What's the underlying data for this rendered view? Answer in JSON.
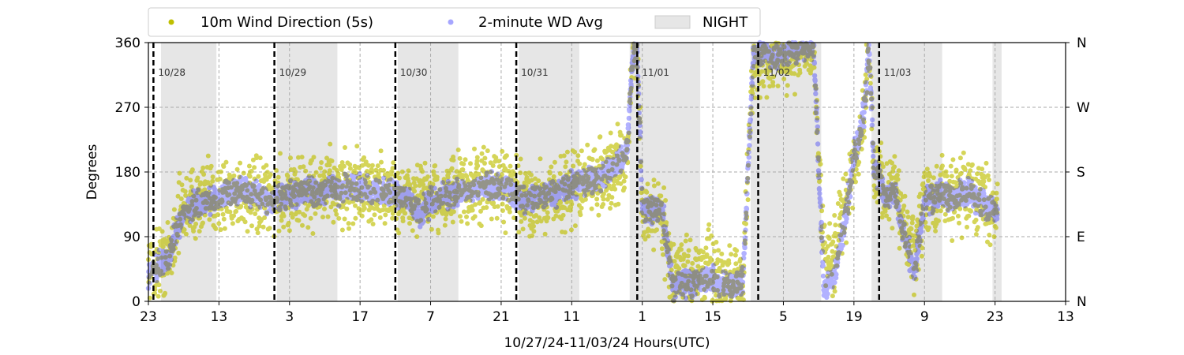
{
  "chart_data": {
    "type": "scatter",
    "title": "",
    "xlabel": "10/27/24-11/03/24  Hours(UTC)",
    "ylabel": "Degrees",
    "x_range_hours": [
      0,
      182
    ],
    "ylim": [
      0,
      360
    ],
    "x_tick_positions_hours": [
      0,
      14,
      28,
      42,
      56,
      70,
      84,
      98,
      112,
      126,
      140,
      154,
      168,
      182
    ],
    "x_tick_labels": [
      "23",
      "13",
      "3",
      "17",
      "7",
      "21",
      "11",
      "1",
      "15",
      "5",
      "19",
      "9",
      "23",
      "13"
    ],
    "y_ticks": [
      0,
      90,
      180,
      270,
      360
    ],
    "y_tick_labels": [
      "0",
      "90",
      "180",
      "270",
      "360"
    ],
    "right_axis_labels": [
      "N",
      "E",
      "S",
      "W",
      "N"
    ],
    "grid": true,
    "legend": {
      "placement": "top-left",
      "entries": [
        {
          "label": "10m Wind Direction (5s)",
          "color": "#bfbf00",
          "marker": "dot"
        },
        {
          "label": "2-minute WD Avg",
          "color": "#0000ff",
          "marker": "dot"
        },
        {
          "label": "NIGHT",
          "color": "#e6e6e6",
          "marker": "patch"
        }
      ]
    },
    "day_markers": [
      {
        "hour": 1,
        "label": "10/28"
      },
      {
        "hour": 25,
        "label": "10/29"
      },
      {
        "hour": 49,
        "label": "10/30"
      },
      {
        "hour": 73,
        "label": "10/31"
      },
      {
        "hour": 97,
        "label": "11/01"
      },
      {
        "hour": 121,
        "label": "11/02"
      },
      {
        "hour": 145,
        "label": "11/03"
      }
    ],
    "night_periods_hours": [
      [
        2.5,
        13.5
      ],
      [
        25.5,
        37.5
      ],
      [
        49.5,
        61.5
      ],
      [
        73.5,
        85.5
      ],
      [
        95.5,
        109.5
      ],
      [
        119.5,
        133.5
      ],
      [
        143.5,
        157.5
      ],
      [
        167.5,
        169.3
      ]
    ],
    "series": [
      {
        "name": "10m Wind Direction (5s)",
        "color": "#bfbf00",
        "spread_deg": 40,
        "points": [
          [
            0,
            40
          ],
          [
            2,
            55
          ],
          [
            4,
            60
          ],
          [
            6,
            120
          ],
          [
            8,
            135
          ],
          [
            10,
            140
          ],
          [
            12,
            140
          ],
          [
            14,
            145
          ],
          [
            16,
            150
          ],
          [
            18,
            150
          ],
          [
            20,
            145
          ],
          [
            22,
            140
          ],
          [
            24,
            140
          ],
          [
            26,
            145
          ],
          [
            28,
            150
          ],
          [
            30,
            150
          ],
          [
            32,
            155
          ],
          [
            34,
            150
          ],
          [
            36,
            160
          ],
          [
            38,
            155
          ],
          [
            40,
            160
          ],
          [
            42,
            160
          ],
          [
            44,
            150
          ],
          [
            46,
            155
          ],
          [
            48,
            150
          ],
          [
            50,
            145
          ],
          [
            52,
            140
          ],
          [
            54,
            150
          ],
          [
            56,
            140
          ],
          [
            58,
            145
          ],
          [
            60,
            150
          ],
          [
            62,
            155
          ],
          [
            64,
            155
          ],
          [
            66,
            160
          ],
          [
            68,
            160
          ],
          [
            70,
            160
          ],
          [
            72,
            155
          ],
          [
            74,
            140
          ],
          [
            76,
            140
          ],
          [
            78,
            145
          ],
          [
            80,
            150
          ],
          [
            82,
            150
          ],
          [
            84,
            155
          ],
          [
            86,
            165
          ],
          [
            88,
            170
          ],
          [
            90,
            175
          ],
          [
            92,
            180
          ],
          [
            94,
            190
          ],
          [
            95,
            205
          ],
          [
            96,
            340
          ],
          [
            97,
            350
          ],
          [
            98,
            120
          ],
          [
            100,
            130
          ],
          [
            102,
            120
          ],
          [
            104,
            30
          ],
          [
            106,
            40
          ],
          [
            108,
            35
          ],
          [
            110,
            45
          ],
          [
            112,
            40
          ],
          [
            114,
            30
          ],
          [
            116,
            30
          ],
          [
            118,
            35
          ],
          [
            120,
            330
          ],
          [
            122,
            345
          ],
          [
            124,
            330
          ],
          [
            126,
            340
          ],
          [
            128,
            345
          ],
          [
            130,
            350
          ],
          [
            132,
            350
          ],
          [
            134,
            60
          ],
          [
            136,
            70
          ],
          [
            138,
            120
          ],
          [
            140,
            200
          ],
          [
            142,
            250
          ],
          [
            143,
            350
          ],
          [
            144,
            180
          ],
          [
            145,
            180
          ],
          [
            146,
            150
          ],
          [
            148,
            160
          ],
          [
            150,
            100
          ],
          [
            152,
            60
          ],
          [
            154,
            140
          ],
          [
            156,
            140
          ],
          [
            158,
            150
          ],
          [
            160,
            150
          ],
          [
            162,
            155
          ],
          [
            164,
            150
          ],
          [
            166,
            140
          ],
          [
            168,
            130
          ]
        ]
      },
      {
        "name": "2-minute WD Avg",
        "color": "#0000ff",
        "spread_deg": 14,
        "points": [
          [
            0,
            40
          ],
          [
            2,
            50
          ],
          [
            4,
            60
          ],
          [
            6,
            110
          ],
          [
            8,
            130
          ],
          [
            10,
            135
          ],
          [
            12,
            140
          ],
          [
            14,
            145
          ],
          [
            16,
            150
          ],
          [
            18,
            155
          ],
          [
            20,
            150
          ],
          [
            22,
            150
          ],
          [
            24,
            140
          ],
          [
            26,
            145
          ],
          [
            28,
            148
          ],
          [
            30,
            150
          ],
          [
            32,
            155
          ],
          [
            34,
            150
          ],
          [
            36,
            160
          ],
          [
            38,
            155
          ],
          [
            40,
            160
          ],
          [
            42,
            160
          ],
          [
            44,
            150
          ],
          [
            46,
            155
          ],
          [
            48,
            150
          ],
          [
            50,
            145
          ],
          [
            52,
            140
          ],
          [
            54,
            120
          ],
          [
            56,
            140
          ],
          [
            58,
            145
          ],
          [
            60,
            150
          ],
          [
            62,
            155
          ],
          [
            64,
            155
          ],
          [
            66,
            160
          ],
          [
            68,
            160
          ],
          [
            70,
            160
          ],
          [
            72,
            155
          ],
          [
            74,
            140
          ],
          [
            76,
            140
          ],
          [
            78,
            145
          ],
          [
            80,
            150
          ],
          [
            82,
            155
          ],
          [
            84,
            160
          ],
          [
            86,
            165
          ],
          [
            88,
            170
          ],
          [
            90,
            175
          ],
          [
            92,
            185
          ],
          [
            94,
            195
          ],
          [
            95,
            210
          ],
          [
            96,
            330
          ],
          [
            97,
            350
          ],
          [
            98,
            130
          ],
          [
            100,
            130
          ],
          [
            102,
            130
          ],
          [
            104,
            20
          ],
          [
            106,
            30
          ],
          [
            108,
            25
          ],
          [
            110,
            35
          ],
          [
            112,
            30
          ],
          [
            114,
            25
          ],
          [
            116,
            20
          ],
          [
            118,
            30
          ],
          [
            120,
            340
          ],
          [
            122,
            350
          ],
          [
            124,
            340
          ],
          [
            126,
            345
          ],
          [
            128,
            350
          ],
          [
            130,
            355
          ],
          [
            132,
            355
          ],
          [
            134,
            20
          ],
          [
            136,
            30
          ],
          [
            138,
            100
          ],
          [
            140,
            200
          ],
          [
            142,
            260
          ],
          [
            143,
            355
          ],
          [
            144,
            180
          ],
          [
            145,
            180
          ],
          [
            146,
            140
          ],
          [
            148,
            150
          ],
          [
            150,
            90
          ],
          [
            152,
            40
          ],
          [
            154,
            140
          ],
          [
            156,
            145
          ],
          [
            158,
            150
          ],
          [
            160,
            145
          ],
          [
            162,
            150
          ],
          [
            164,
            145
          ],
          [
            166,
            135
          ],
          [
            168,
            125
          ]
        ]
      }
    ]
  }
}
